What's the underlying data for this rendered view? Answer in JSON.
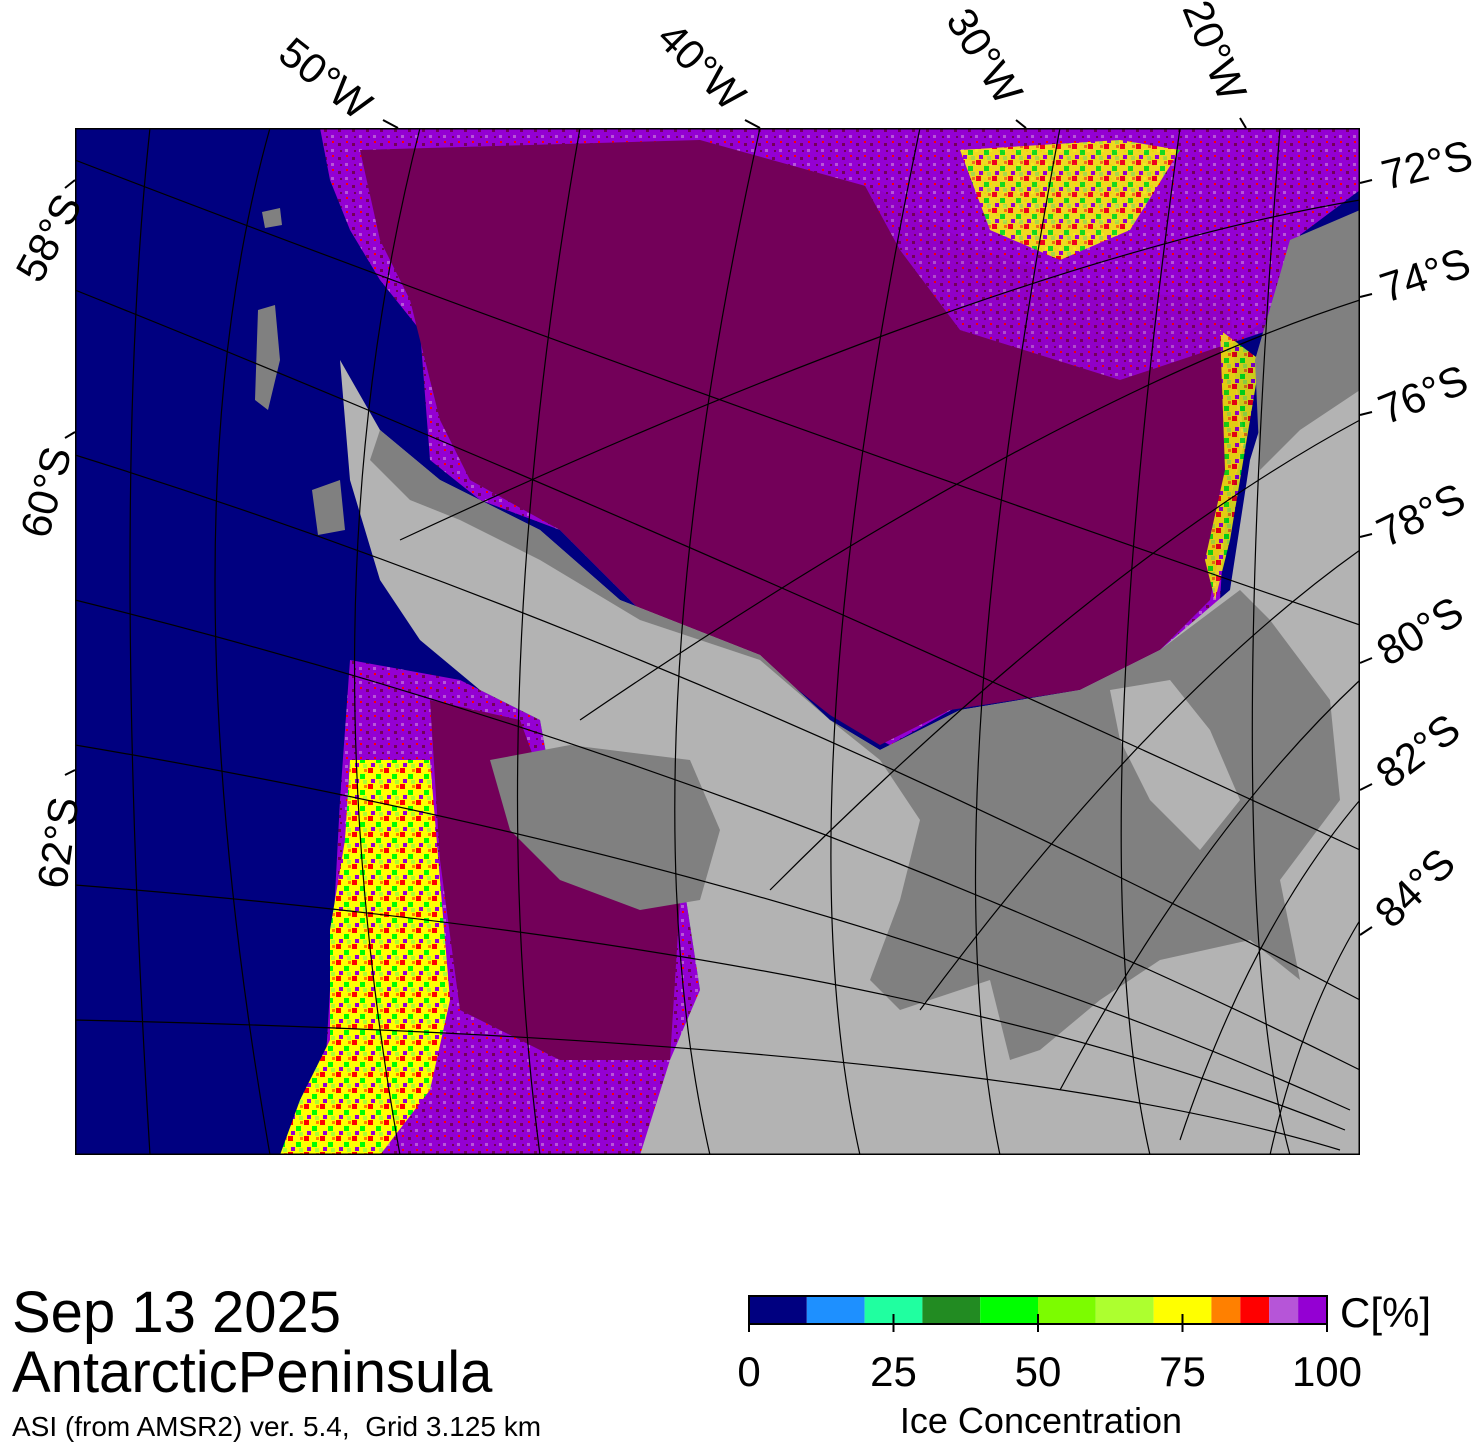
{
  "map": {
    "date": "Sep 13 2025",
    "region": "AntarcticPeninsula",
    "product": "ASI (from AMSR2) ver. 5.4,  Grid 3.125 km",
    "longitude_labels": [
      "50°W",
      "40°W",
      "30°W",
      "20°W"
    ],
    "latitude_labels_left": [
      "58°S",
      "60°S",
      "62°S"
    ],
    "latitude_labels_right": [
      "72°S",
      "74°S",
      "76°S",
      "78°S",
      "80°S",
      "82°S",
      "84°S"
    ]
  },
  "legend": {
    "title": "Ice Concentration",
    "unit": "C[%]",
    "ticks": [
      "0",
      "25",
      "50",
      "75",
      "100"
    ],
    "tick_values": [
      0,
      25,
      50,
      75,
      100
    ],
    "bins": [
      {
        "from": 0,
        "to": 10,
        "color": "#000080"
      },
      {
        "from": 10,
        "to": 20,
        "color": "#1e90ff"
      },
      {
        "from": 20,
        "to": 30,
        "color": "#20ffa0"
      },
      {
        "from": 30,
        "to": 40,
        "color": "#228b22"
      },
      {
        "from": 40,
        "to": 50,
        "color": "#00ff00"
      },
      {
        "from": 50,
        "to": 60,
        "color": "#7cfc00"
      },
      {
        "from": 60,
        "to": 70,
        "color": "#adff2f"
      },
      {
        "from": 70,
        "to": 80,
        "color": "#ffff00"
      },
      {
        "from": 80,
        "to": 85,
        "color": "#ff8000"
      },
      {
        "from": 85,
        "to": 90,
        "color": "#ff0000"
      },
      {
        "from": 90,
        "to": 95,
        "color": "#b655d8"
      },
      {
        "from": 95,
        "to": 100,
        "color": "#9400d3"
      }
    ]
  },
  "colors": {
    "ocean": "#000080",
    "ice_full": "#730059",
    "ice_high": "#9400d3",
    "land_ice_shelf": "#808080",
    "land_continent": "#b3b3b3",
    "graticule": "#000000"
  }
}
